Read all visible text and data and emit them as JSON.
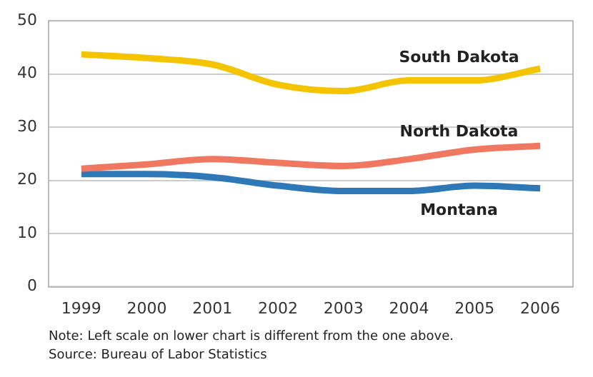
{
  "chart_data": {
    "type": "line",
    "categories": [
      "1999",
      "2000",
      "2001",
      "2002",
      "2003",
      "2004",
      "2005",
      "2006"
    ],
    "series": [
      {
        "name": "South Dakota",
        "color": "#f5c400",
        "values": [
          43.7,
          43,
          41.8,
          38,
          36.8,
          38.8,
          38.8,
          41
        ]
      },
      {
        "name": "North Dakota",
        "color": "#f07860",
        "values": [
          22.2,
          23,
          24,
          23.3,
          22.7,
          24,
          25.8,
          26.5
        ]
      },
      {
        "name": "Montana",
        "color": "#2f78b8",
        "values": [
          21.2,
          21.2,
          20.6,
          19,
          18,
          18,
          19,
          18.5
        ]
      }
    ],
    "ylim": [
      0,
      50
    ],
    "yticks": [
      0,
      10,
      20,
      30,
      40,
      50
    ],
    "grid": "y",
    "legend": false,
    "marker": "none",
    "line_style": "solid",
    "annotations": [
      "Note: Left scale on lower chart is different from the one above.",
      "Source: Bureau of Labor Statistics"
    ]
  }
}
